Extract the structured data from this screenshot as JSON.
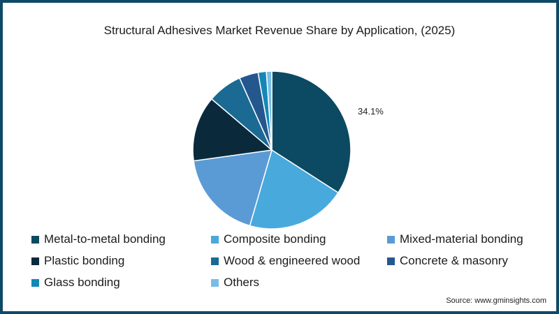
{
  "chart_data": {
    "type": "pie",
    "title": "Structural Adhesives Market Revenue Share by Application, (2025)",
    "categories": [
      "Metal-to-metal bonding",
      "Composite bonding",
      "Mixed-material bonding",
      "Plastic bonding",
      "Wood & engineered wood",
      "Concrete & masonry",
      "Glass bonding",
      "Others"
    ],
    "values": [
      34.1,
      20.4,
      18.3,
      13.4,
      7.1,
      3.9,
      1.7,
      1.1
    ],
    "colors": [
      "#0b4a62",
      "#48a9dd",
      "#5b9bd5",
      "#0a2a3c",
      "#1a6a93",
      "#24578e",
      "#1488b5",
      "#79bde6"
    ],
    "annotations": [
      {
        "label": "34.1%",
        "series": "Metal-to-metal bonding"
      }
    ],
    "legend_position": "bottom",
    "start_angle_deg": 0,
    "direction": "clockwise"
  },
  "title": "Structural Adhesives Market Revenue Share by Application, (2025)",
  "label_metal": "34.1%",
  "legend": [
    {
      "label": "Metal-to-metal bonding",
      "color": "#0b4a62"
    },
    {
      "label": "Composite bonding",
      "color": "#48a9dd"
    },
    {
      "label": "Mixed-material bonding",
      "color": "#5b9bd5"
    },
    {
      "label": "Plastic bonding",
      "color": "#0a2a3c"
    },
    {
      "label": "Wood & engineered wood",
      "color": "#1a6a93"
    },
    {
      "label": "Concrete & masonry",
      "color": "#24578e"
    },
    {
      "label": "Glass bonding",
      "color": "#1488b5"
    },
    {
      "label": "Others",
      "color": "#79bde6"
    }
  ],
  "source": "Source: www.gminsights.com"
}
